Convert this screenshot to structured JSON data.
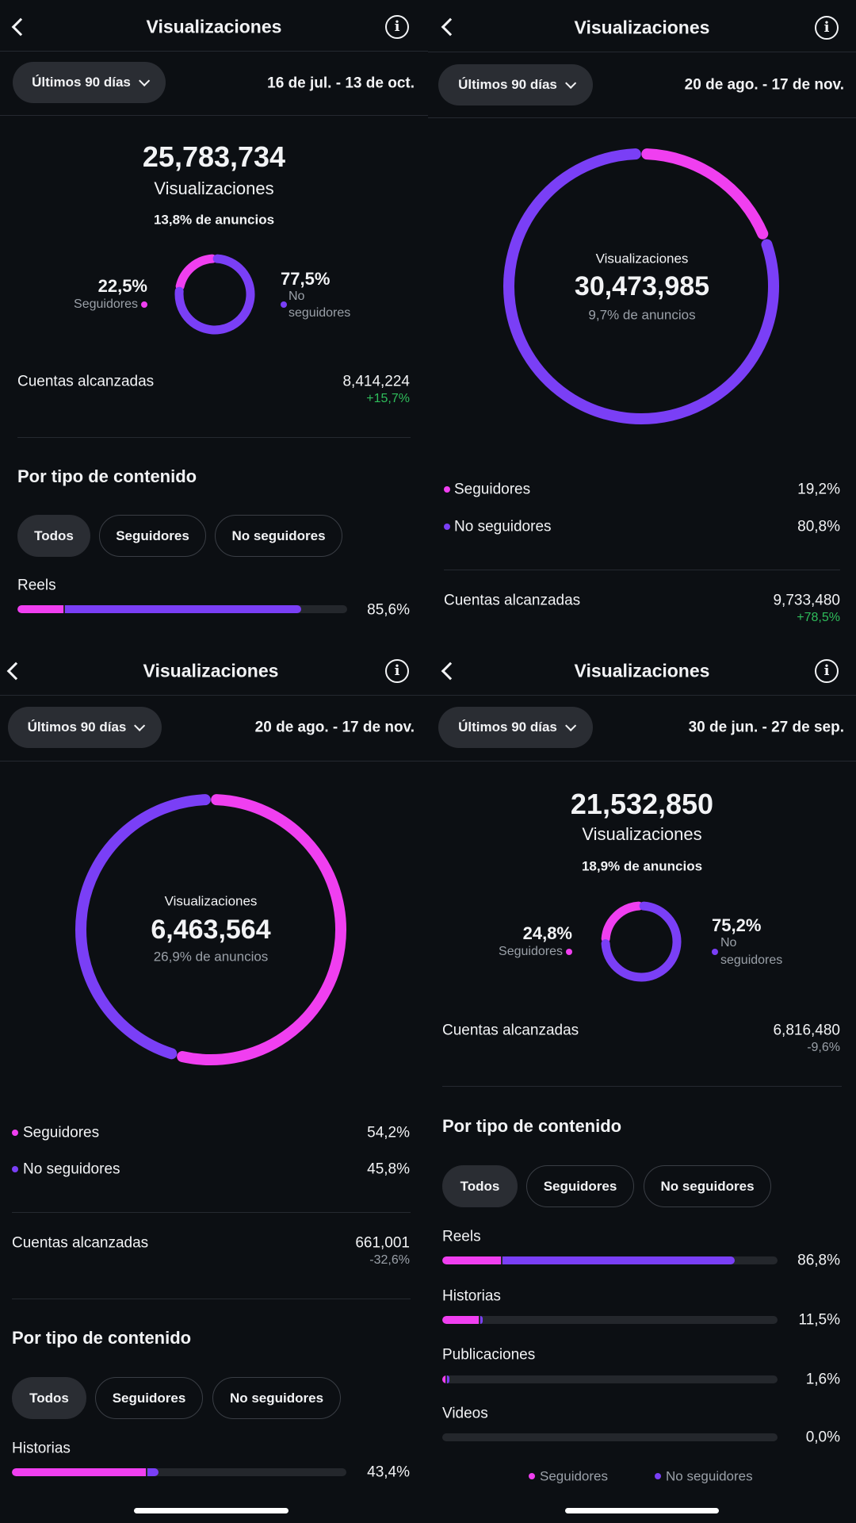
{
  "colors": {
    "seguidores": "#f03ff0",
    "no_seguidores": "#7a3ff6"
  },
  "common": {
    "title": "Visualizaciones",
    "range": "Últimos 90 días",
    "views_label": "Visualizaciones",
    "seguidores": "Seguidores",
    "no_seguidores": "No seguidores",
    "no": "No",
    "seguidores_lc": "seguidores",
    "reached": "Cuentas alcanzadas",
    "by_type": "Por tipo de contenido",
    "chips": [
      "Todos",
      "Seguidores",
      "No seguidores"
    ]
  },
  "panels": [
    {
      "date": "16 de jul. - 13 de oct.",
      "views": "25,783,734",
      "ads": "13,8% de anuncios",
      "followers_pct": "22,5%",
      "non_followers_pct": "77,5%",
      "reached": "8,414,224",
      "reached_change": "+15,7%",
      "content": [
        {
          "label": "Reels",
          "pct": "85,6%",
          "seguidores": 13.9,
          "no_seguidores": 71.7
        }
      ]
    },
    {
      "date": "20 de ago. - 17 de nov.",
      "views": "30,473,985",
      "ads": "9,7% de anuncios",
      "followers_pct": "19,2%",
      "non_followers_pct": "80,8%",
      "reached": "9,733,480",
      "reached_change": "+78,5%"
    },
    {
      "date": "20 de ago. - 17 de nov.",
      "views": "6,463,564",
      "ads": "26,9% de anuncios",
      "followers_pct": "54,2%",
      "non_followers_pct": "45,8%",
      "reached": "661,001",
      "reached_change": "-32,6%",
      "content": [
        {
          "label": "Historias",
          "pct": "43,4%",
          "seguidores": 40.0,
          "no_seguidores": 3.4
        }
      ]
    },
    {
      "date": "30 de jun. - 27 de sep.",
      "views": "21,532,850",
      "ads": "18,9% de anuncios",
      "followers_pct": "24,8%",
      "non_followers_pct": "75,2%",
      "reached": "6,816,480",
      "reached_change": "-9,6%",
      "content": [
        {
          "label": "Reels",
          "pct": "86,8%",
          "seguidores": 17.5,
          "no_seguidores": 69.3
        },
        {
          "label": "Historias",
          "pct": "11,5%",
          "seguidores": 10.9,
          "no_seguidores": 0.6
        },
        {
          "label": "Publicaciones",
          "pct": "1,6%",
          "seguidores": 1.0,
          "no_seguidores": 0.6
        },
        {
          "label": "Videos",
          "pct": "0,0%",
          "seguidores": 0,
          "no_seguidores": 0
        }
      ]
    }
  ],
  "donuts": [
    {
      "seguidores": 22.5,
      "no_seguidores": 77.5
    },
    {
      "seguidores": 19.2,
      "no_seguidores": 80.8
    },
    {
      "seguidores": 54.2,
      "no_seguidores": 45.8
    },
    {
      "seguidores": 24.8,
      "no_seguidores": 75.2
    }
  ]
}
